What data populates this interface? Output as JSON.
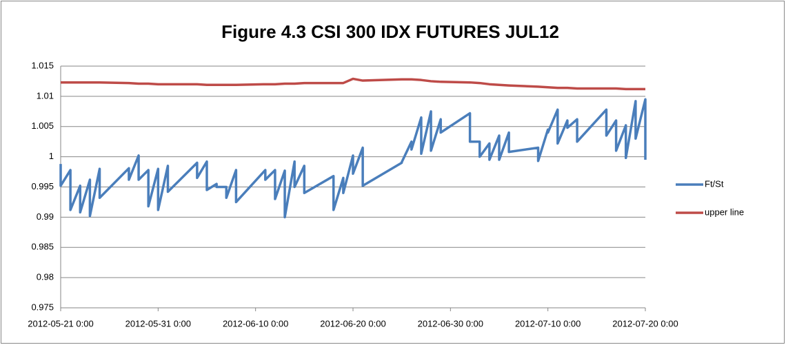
{
  "chart_data": {
    "type": "line",
    "title": "Figure 4.3 CSI 300 IDX FUTURES JUL12",
    "xlim": [
      "2012-05-21 0:00",
      "2012-07-20 0:00"
    ],
    "xticks": [
      "2012-05-21 0:00",
      "2012-05-31 0:00",
      "2012-06-10 0:00",
      "2012-06-20 0:00",
      "2012-06-30 0:00",
      "2012-07-10 0:00",
      "2012-07-20 0:00"
    ],
    "ylim": [
      0.975,
      1.015
    ],
    "yticks": [
      0.975,
      0.98,
      0.985,
      0.99,
      0.995,
      1,
      1.005,
      1.01,
      1.015
    ],
    "grid": true,
    "legend": "right",
    "series": [
      {
        "name": "Ft/St",
        "color": "#4a7ebb",
        "x": [
          "2012-05-21 0:00",
          "2012-05-21 0:00",
          "2012-05-22 0:00",
          "2012-05-22 0:00",
          "2012-05-23 0:00",
          "2012-05-23 0:00",
          "2012-05-24 0:00",
          "2012-05-24 0:00",
          "2012-05-25 0:00",
          "2012-05-25 0:00",
          "2012-05-28 0:00",
          "2012-05-28 0:00",
          "2012-05-29 0:00",
          "2012-05-29 0:00",
          "2012-05-30 0:00",
          "2012-05-30 0:00",
          "2012-05-31 0:00",
          "2012-05-31 0:00",
          "2012-06-01 0:00",
          "2012-06-01 0:00",
          "2012-06-04 0:00",
          "2012-06-04 0:00",
          "2012-06-05 0:00",
          "2012-06-05 0:00",
          "2012-06-06 0:00",
          "2012-06-06 0:00",
          "2012-06-07 0:00",
          "2012-06-07 0:00",
          "2012-06-08 0:00",
          "2012-06-08 0:00",
          "2012-06-11 0:00",
          "2012-06-11 0:00",
          "2012-06-12 0:00",
          "2012-06-12 0:00",
          "2012-06-13 0:00",
          "2012-06-13 0:00",
          "2012-06-14 0:00",
          "2012-06-14 0:00",
          "2012-06-15 0:00",
          "2012-06-15 0:00",
          "2012-06-18 0:00",
          "2012-06-18 0:00",
          "2012-06-19 0:00",
          "2012-06-19 0:00",
          "2012-06-20 0:00",
          "2012-06-20 0:00",
          "2012-06-21 0:00",
          "2012-06-21 0:00",
          "2012-06-25 0:00",
          "2012-06-25 0:00",
          "2012-06-26 0:00",
          "2012-06-26 0:00",
          "2012-06-27 0:00",
          "2012-06-27 0:00",
          "2012-06-28 0:00",
          "2012-06-28 0:00",
          "2012-06-29 0:00",
          "2012-06-29 0:00",
          "2012-07-02 0:00",
          "2012-07-02 0:00",
          "2012-07-03 0:00",
          "2012-07-03 0:00",
          "2012-07-04 0:00",
          "2012-07-04 0:00",
          "2012-07-05 0:00",
          "2012-07-05 0:00",
          "2012-07-06 0:00",
          "2012-07-06 0:00",
          "2012-07-09 0:00",
          "2012-07-09 0:00",
          "2012-07-10 0:00",
          "2012-07-10 0:00",
          "2012-07-11 0:00",
          "2012-07-11 0:00",
          "2012-07-12 0:00",
          "2012-07-12 0:00",
          "2012-07-13 0:00",
          "2012-07-13 0:00",
          "2012-07-16 0:00",
          "2012-07-16 0:00",
          "2012-07-17 0:00",
          "2012-07-17 0:00",
          "2012-07-18 0:00",
          "2012-07-18 0:00",
          "2012-07-19 0:00",
          "2012-07-19 0:00",
          "2012-07-20 0:00",
          "2012-07-20 0:00"
        ],
        "values": [
          0.9988,
          0.9952,
          0.9978,
          0.9912,
          0.9952,
          0.9908,
          0.9962,
          0.9902,
          0.998,
          0.9932,
          0.9981,
          0.9962,
          1.0002,
          0.9962,
          0.9978,
          0.9918,
          0.998,
          0.9912,
          0.9985,
          0.9942,
          0.999,
          0.9965,
          0.9992,
          0.9945,
          0.9955,
          0.995,
          0.995,
          0.9932,
          0.9978,
          0.9925,
          0.9978,
          0.9962,
          0.9978,
          0.993,
          0.9977,
          0.99,
          0.9992,
          0.995,
          0.9985,
          0.994,
          0.9968,
          0.9912,
          0.9965,
          0.994,
          1.0002,
          0.9972,
          1.0015,
          0.9952,
          0.999,
          0.9991,
          1.0025,
          1.0012,
          1.0065,
          1.0005,
          1.0075,
          1.001,
          1.0062,
          1.004,
          1.0072,
          1.0025,
          1.0025,
          1.0,
          1.0022,
          0.9995,
          1.0035,
          0.9995,
          1.004,
          1.0008,
          1.0015,
          0.9993,
          1.0045,
          1.004,
          1.0078,
          1.0022,
          1.006,
          1.0048,
          1.0062,
          1.0025,
          1.0078,
          1.0035,
          1.006,
          1.001,
          1.0052,
          0.9998,
          1.0092,
          1.003,
          1.0095,
          0.9995
        ]
      },
      {
        "name": "upper line",
        "color": "#be4b48",
        "x": [
          "2012-05-21 0:00",
          "2012-05-22 0:00",
          "2012-05-23 0:00",
          "2012-05-24 0:00",
          "2012-05-25 0:00",
          "2012-05-28 0:00",
          "2012-05-29 0:00",
          "2012-05-30 0:00",
          "2012-05-31 0:00",
          "2012-06-01 0:00",
          "2012-06-04 0:00",
          "2012-06-05 0:00",
          "2012-06-06 0:00",
          "2012-06-07 0:00",
          "2012-06-08 0:00",
          "2012-06-11 0:00",
          "2012-06-12 0:00",
          "2012-06-13 0:00",
          "2012-06-14 0:00",
          "2012-06-15 0:00",
          "2012-06-18 0:00",
          "2012-06-19 0:00",
          "2012-06-20 0:00",
          "2012-06-21 0:00",
          "2012-06-25 0:00",
          "2012-06-26 0:00",
          "2012-06-27 0:00",
          "2012-06-28 0:00",
          "2012-06-29 0:00",
          "2012-07-02 0:00",
          "2012-07-03 0:00",
          "2012-07-04 0:00",
          "2012-07-05 0:00",
          "2012-07-06 0:00",
          "2012-07-09 0:00",
          "2012-07-10 0:00",
          "2012-07-11 0:00",
          "2012-07-12 0:00",
          "2012-07-13 0:00",
          "2012-07-16 0:00",
          "2012-07-17 0:00",
          "2012-07-18 0:00",
          "2012-07-19 0:00",
          "2012-07-20 0:00"
        ],
        "values": [
          1.0123,
          1.0123,
          1.0123,
          1.0123,
          1.0123,
          1.0122,
          1.0121,
          1.0121,
          1.012,
          1.012,
          1.012,
          1.0119,
          1.0119,
          1.0119,
          1.0119,
          1.012,
          1.012,
          1.0121,
          1.0121,
          1.0122,
          1.0122,
          1.0122,
          1.0129,
          1.0126,
          1.0128,
          1.0128,
          1.0127,
          1.0125,
          1.0124,
          1.0123,
          1.0122,
          1.012,
          1.0119,
          1.0118,
          1.0116,
          1.0115,
          1.0114,
          1.0114,
          1.0113,
          1.0113,
          1.0113,
          1.0112,
          1.0112,
          1.0112
        ]
      }
    ]
  }
}
